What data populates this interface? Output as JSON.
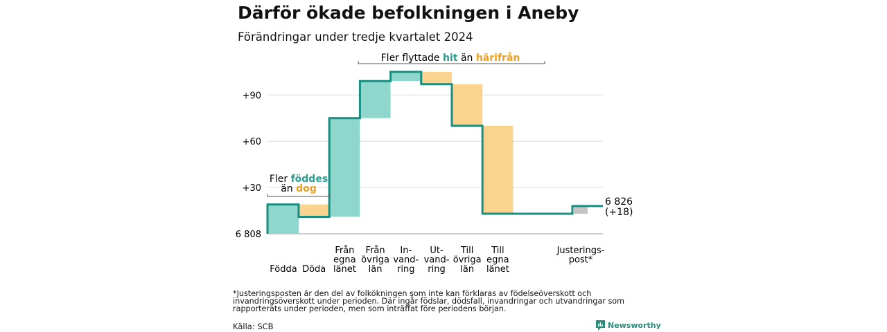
{
  "title": "Därför ökade befolkningen i Aneby",
  "subtitle": "Förändringar under tredje kvartalet 2024",
  "footnote": "*Justeringsposten är den del av folkökningen som inte kan förklaras av födelseöverskott och invandringsöverskott under perioden. Där ingår födslar, dödsfall, invandringar och utvandringar som rapporterats under perioden, men som inträffat före periodens början.",
  "source": "Källa: SCB",
  "brand": "Newsworthy",
  "colors": {
    "increase": "#8fd6cc",
    "decrease": "#fad48e",
    "adjustment": "#c4c4c4",
    "line": "#1a8c80",
    "teal_text": "#2a9d8f",
    "orange_text": "#f0a020"
  },
  "annotations": {
    "births": {
      "part1": "Fler",
      "hl1": "föddes",
      "part2": "än",
      "hl2": "dog"
    },
    "migration": {
      "part1": "Fler flyttade",
      "hl1": "hit",
      "part2": "än",
      "hl2": "härifrån"
    }
  },
  "chart_data": {
    "type": "waterfall",
    "start_value": 6808,
    "end_label": "6 826",
    "end_change": "(+18)",
    "y_ticks": [
      {
        "value": 0,
        "label": "6 808"
      },
      {
        "value": 30,
        "label": "+30"
      },
      {
        "value": 60,
        "label": "+60"
      },
      {
        "value": 90,
        "label": "+90"
      }
    ],
    "ylim": [
      0,
      108
    ],
    "grid": true,
    "categories": [
      {
        "label": [
          "Födda"
        ],
        "change": 19
      },
      {
        "label": [
          "Döda"
        ],
        "change": -8
      },
      {
        "label": [
          "Från",
          "egna",
          "länet"
        ],
        "change": 64
      },
      {
        "label": [
          "Från",
          "övriga",
          "län"
        ],
        "change": 24
      },
      {
        "label": [
          "In-",
          "vand-",
          "ring"
        ],
        "change": 6
      },
      {
        "label": [
          "Ut-",
          "vand-",
          "ring"
        ],
        "change": -8
      },
      {
        "label": [
          "Till",
          "övriga",
          "län"
        ],
        "change": -27
      },
      {
        "label": [
          "Till",
          "egna",
          "länet"
        ],
        "change": -57
      },
      {
        "label": [
          "Justerings-",
          "post*"
        ],
        "change": 5
      }
    ]
  }
}
